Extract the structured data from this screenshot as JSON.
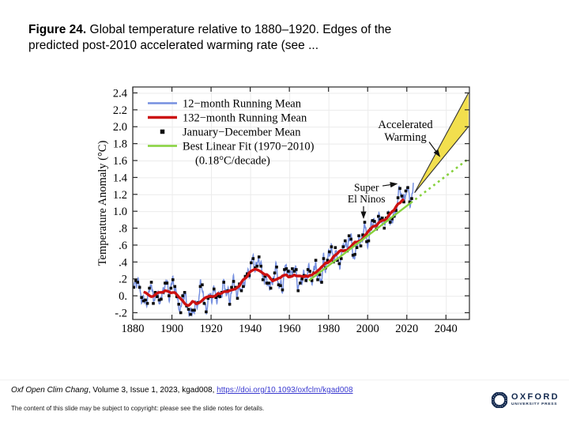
{
  "slide": {
    "title": {
      "bold": "Figure 24.",
      "rest": " Global temperature relative to 1880–1920. Edges of the predicted post-2010 accelerated warming rate (see ..."
    },
    "footer": {
      "journal": "Oxf Open Clim Chang",
      "citation": ", Volume 3, Issue 1, 2023, kgad008, ",
      "doi_link": "https://doi.org/10.1093/oxfclm/kgad008",
      "copyright": "The content of this slide may be subject to copyright: please see the slide notes for details."
    },
    "logo": {
      "name": "OXFORD",
      "subname": "UNIVERSITY PRESS",
      "color": "#13294e"
    }
  },
  "chart_data": {
    "type": "line",
    "title": "",
    "xlabel": "",
    "ylabel": "Temperature Anomaly (°C)",
    "xlim": [
      1880,
      2052
    ],
    "ylim": [
      -0.28,
      2.47
    ],
    "xticks": [
      1880,
      1900,
      1920,
      1940,
      1960,
      1980,
      2000,
      2020,
      2040
    ],
    "yticks": [
      -0.2,
      0,
      0.2,
      0.4,
      0.6,
      0.8,
      1.0,
      1.2,
      1.4,
      1.6,
      1.8,
      2.0,
      2.2,
      2.4
    ],
    "ytick_labels": [
      "-.2",
      "0.",
      ".2",
      ".4",
      ".6",
      ".8",
      "1.0",
      "1.2",
      "1.4",
      "1.6",
      "1.8",
      "2.0",
      "2.2",
      "2.4"
    ],
    "grid": true,
    "legend_position": "top-left",
    "legend": [
      {
        "label": "12−month Running Mean",
        "swatch": "line",
        "color": "#7690e0"
      },
      {
        "label": "132−month Running Mean",
        "swatch": "line-thick",
        "color": "#cc1111"
      },
      {
        "label": "January−December Mean",
        "swatch": "square",
        "color": "#0a0a0a"
      },
      {
        "label": "Best Linear Fit (1970−2010)",
        "swatch": "line",
        "color": "#86d13c"
      },
      {
        "label": "(0.18°C/decade)",
        "swatch": "none",
        "color": ""
      }
    ],
    "series": {
      "annual_mean": {
        "name": "January−December Mean",
        "start_year": 1880,
        "values": [
          0.1,
          0.18,
          0.16,
          0.1,
          -0.02,
          -0.06,
          -0.05,
          -0.09,
          0.09,
          0.16,
          -0.09,
          0.04,
          -0.01,
          -0.05,
          -0.04,
          0.04,
          0.15,
          0.15,
          0.0,
          0.09,
          0.19,
          0.11,
          -0.01,
          -0.1,
          -0.2,
          0.0,
          0.04,
          -0.12,
          -0.16,
          -0.22,
          -0.17,
          -0.17,
          -0.09,
          -0.08,
          0.11,
          0.13,
          -0.09,
          -0.19,
          -0.03,
          -0.01,
          -0.01,
          0.08,
          -0.02,
          0.0,
          -0.01,
          0.04,
          0.16,
          0.05,
          0.06,
          -0.1,
          0.1,
          0.17,
          0.1,
          -0.03,
          0.14,
          0.06,
          0.11,
          0.23,
          0.26,
          0.24,
          0.39,
          0.44,
          0.33,
          0.35,
          0.46,
          0.35,
          0.19,
          0.23,
          0.15,
          0.15,
          0.09,
          0.19,
          0.27,
          0.34,
          0.13,
          0.12,
          0.07,
          0.31,
          0.32,
          0.29,
          0.23,
          0.32,
          0.29,
          0.31,
          0.06,
          0.15,
          0.2,
          0.24,
          0.18,
          0.31,
          0.29,
          0.18,
          0.27,
          0.42,
          0.19,
          0.25,
          0.16,
          0.44,
          0.33,
          0.42,
          0.52,
          0.58,
          0.4,
          0.57,
          0.42,
          0.38,
          0.44,
          0.58,
          0.65,
          0.53,
          0.71,
          0.67,
          0.48,
          0.49,
          0.57,
          0.71,
          0.59,
          0.72,
          0.87,
          0.64,
          0.65,
          0.79,
          0.89,
          0.88,
          0.79,
          0.94,
          0.9,
          0.92,
          0.8,
          0.92,
          0.98,
          0.87,
          0.91,
          0.94,
          1.01,
          1.16,
          1.27,
          1.18,
          1.11,
          1.24,
          1.28,
          1.11,
          1.15
        ]
      },
      "running_mean_12mo": {
        "name": "12−month Running Mean",
        "derived_from": "monthly interpolation of annual_mean",
        "end": [
          2023.5,
          1.31
        ]
      },
      "running_mean_132mo": {
        "name": "132−month Running Mean",
        "window_years": 11
      },
      "linear_fit": {
        "name": "Best Linear Fit (1970−2010)",
        "rate": "0.18°C/decade",
        "x1": 1970,
        "y1": 0.18,
        "x2": 2051.5,
        "y2": 1.62,
        "solid_until": 2022.0
      },
      "accelerated_warming_wedge": {
        "apex": [
          2024.0,
          1.22
        ],
        "top_end": [
          2051.5,
          2.4
        ],
        "bottom_end": [
          2051.5,
          2.0
        ],
        "fill": "#f2df4e"
      }
    },
    "annotations": [
      {
        "id": "accel",
        "lines": [
          "Accelerated",
          "Warming"
        ],
        "x": 2019.3,
        "y": [
          2.03,
          1.88
        ],
        "arrow": {
          "from": [
            2031.4,
            1.82
          ],
          "to": [
            2036.8,
            1.65
          ]
        }
      },
      {
        "id": "elninos",
        "lines": [
          "Super",
          "El Ninos"
        ],
        "x": 1999.4,
        "y": [
          1.285,
          1.15
        ],
        "arrow_right": {
          "from": [
            2007.6,
            1.3
          ],
          "to": [
            2014.9,
            1.325
          ]
        },
        "arrow_down": {
          "from": [
            1997.9,
            1.06
          ],
          "to": [
            1997.9,
            0.92
          ]
        }
      }
    ]
  }
}
